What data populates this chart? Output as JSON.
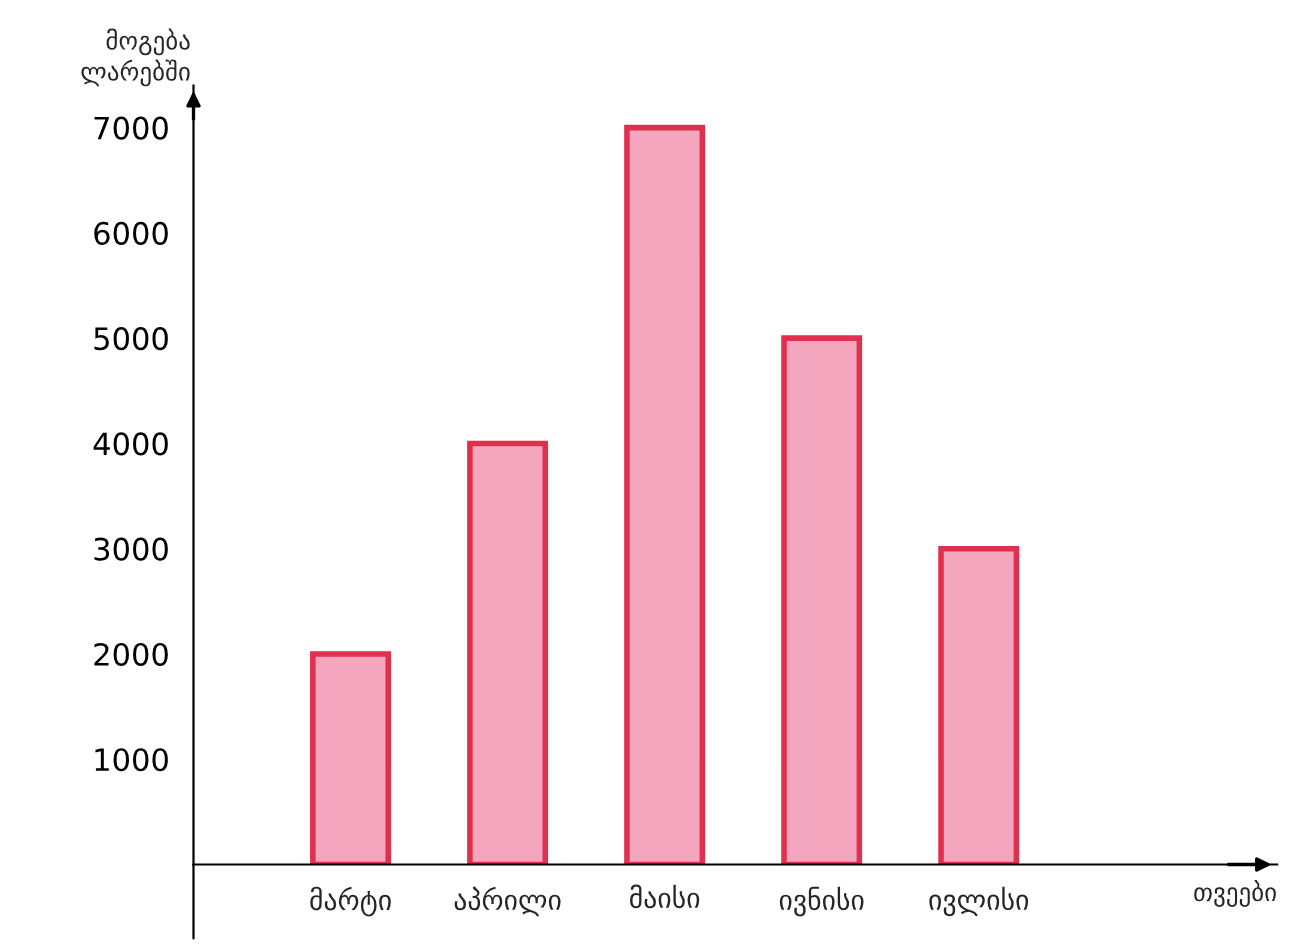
{
  "chart_data": {
    "type": "bar",
    "annotations": [
      "თვეები"
    ],
    "ylabel": "მოგება ლარებში",
    "categories": [
      "მარტი",
      "აპრილი",
      "მაისი",
      "ივნისი",
      "ივლისი"
    ],
    "values": [
      2000,
      4000,
      7000,
      5000,
      3000
    ],
    "color": "#f4a6bf",
    "ylim": [
      0,
      7400
    ],
    "yticks": [
      1000,
      2000,
      3000,
      4000,
      5000,
      6000,
      7000
    ],
    "grid": false
  }
}
